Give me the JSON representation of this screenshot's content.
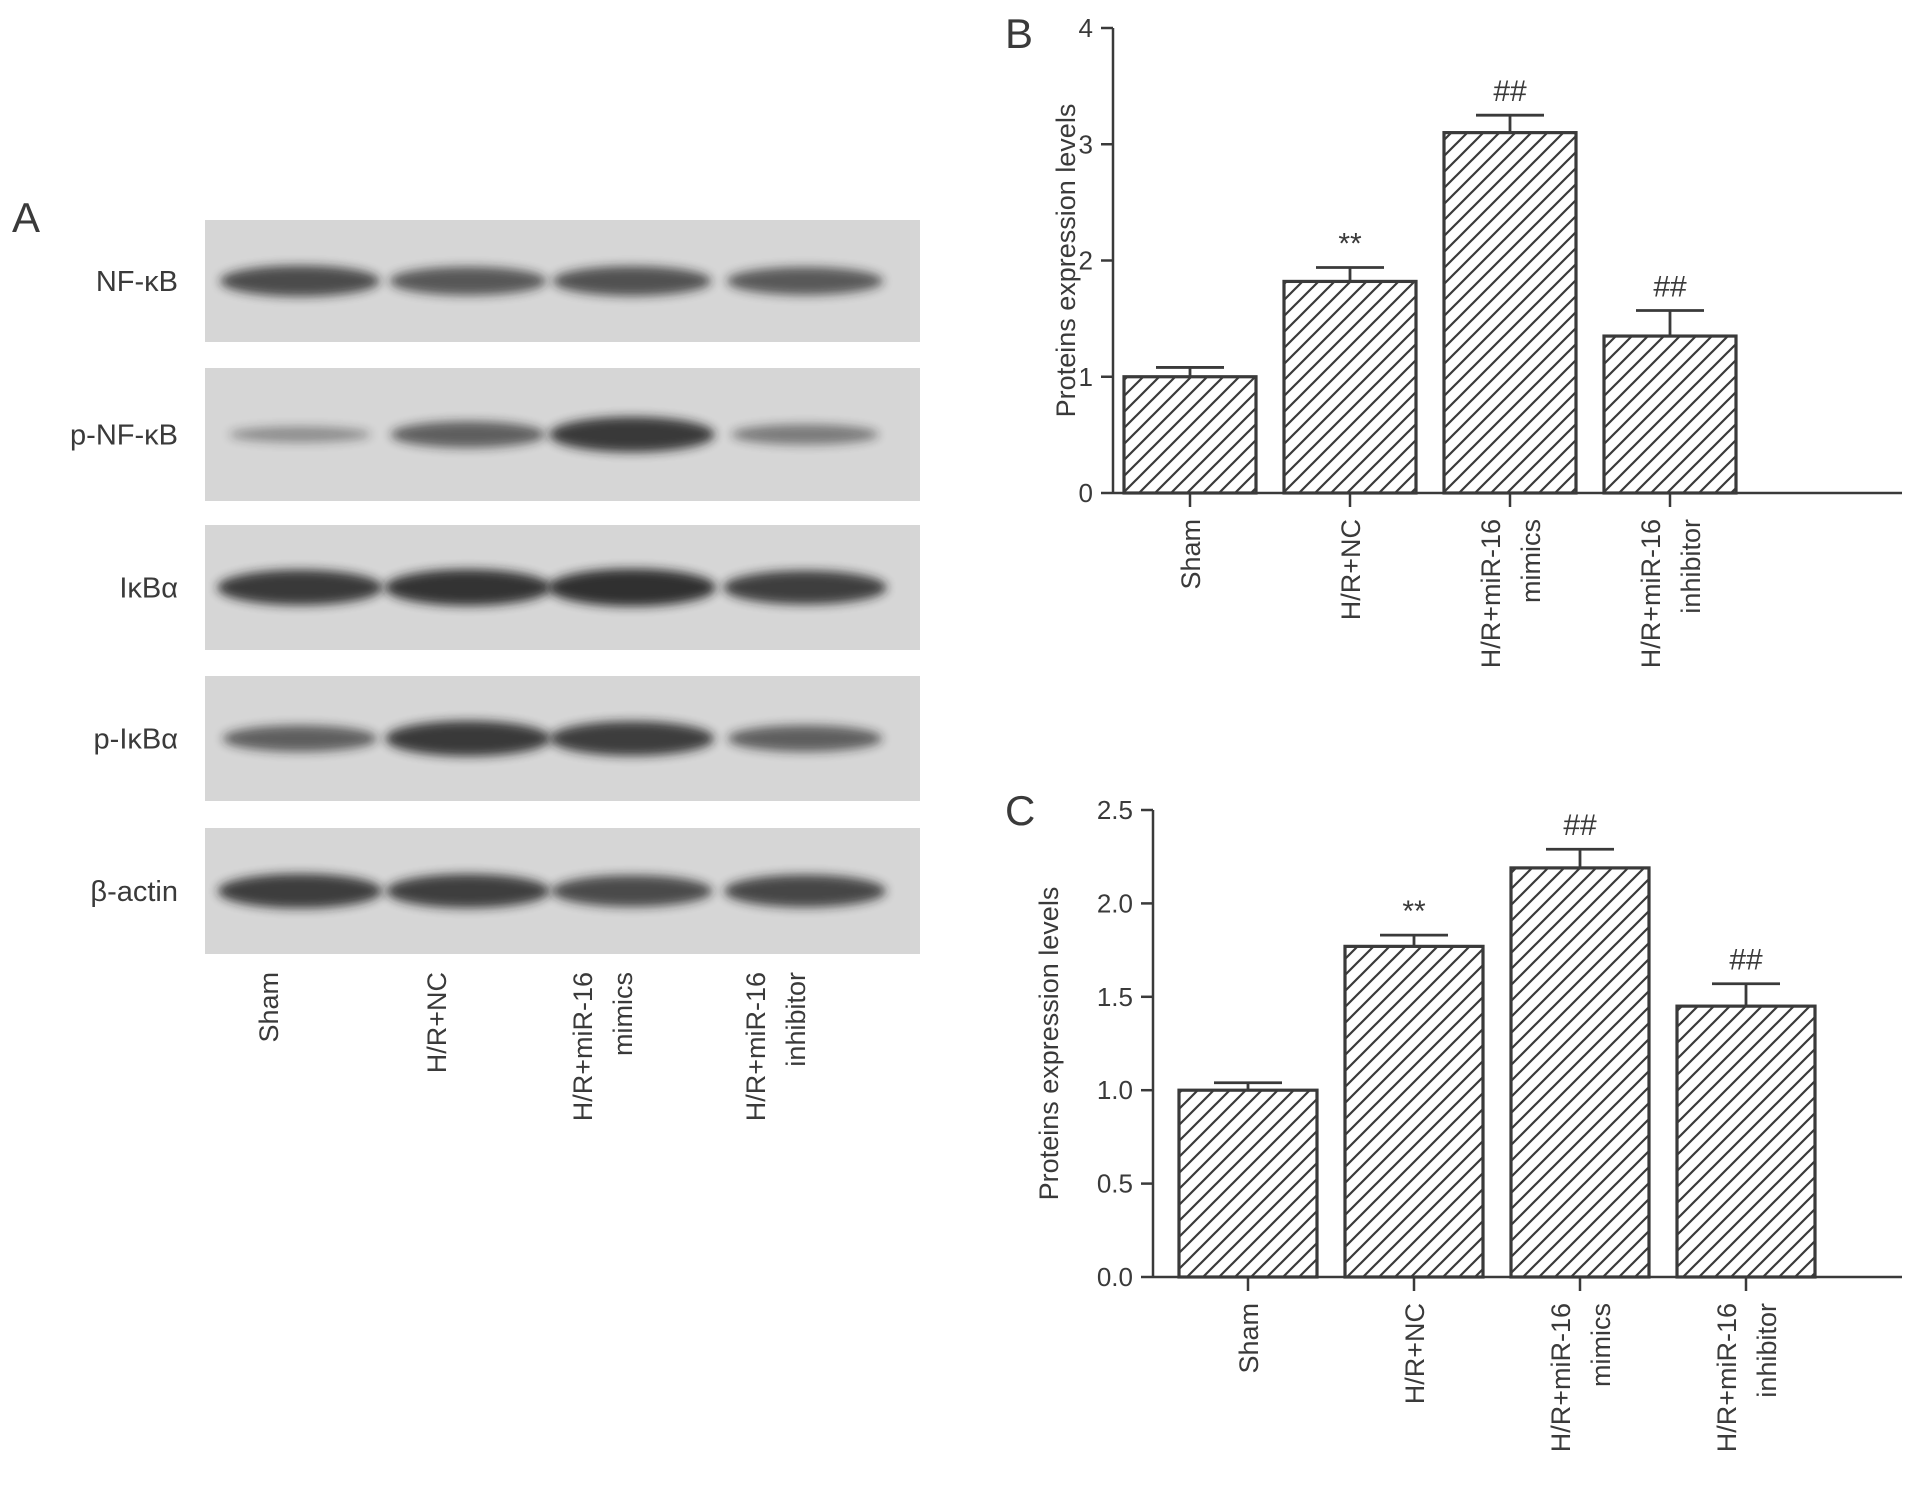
{
  "panel_a": {
    "letter": "A",
    "rows": [
      "NF-κB",
      "p-NF-κB",
      "IκBα",
      "p-IκBα",
      "β-actin"
    ],
    "lanes": [
      [
        "Sham"
      ],
      [
        "H/R+NC"
      ],
      [
        "H/R+miR-16",
        "mimics"
      ],
      [
        "H/R+miR-16",
        "inhibitor"
      ]
    ],
    "band_intensity": [
      [
        0.7,
        0.62,
        0.66,
        0.6
      ],
      [
        0.2,
        0.55,
        0.85,
        0.35
      ],
      [
        0.85,
        0.88,
        0.92,
        0.8
      ],
      [
        0.55,
        0.85,
        0.82,
        0.55
      ],
      [
        0.82,
        0.8,
        0.72,
        0.75
      ]
    ],
    "colors": {
      "membrane": "#d6d6d6",
      "band": "#1a1a1a"
    }
  },
  "chart_data": [
    {
      "type": "bar",
      "panel": "B",
      "categories": [
        [
          "Sham"
        ],
        [
          "H/R+NC"
        ],
        [
          "H/R+miR-16",
          "mimics"
        ],
        [
          "H/R+miR-16",
          "inhibitor"
        ]
      ],
      "values": [
        1.0,
        1.82,
        3.1,
        1.35
      ],
      "errors": [
        0.08,
        0.12,
        0.15,
        0.22
      ],
      "annotations": [
        "",
        "**",
        "##",
        "##"
      ],
      "ylabel": "Proteins expression levels",
      "xlabel": "",
      "ylim": [
        0,
        4
      ],
      "yticks": [
        0,
        1,
        2,
        3,
        4
      ],
      "ytick_labels": [
        "0",
        "1",
        "2",
        "3",
        "4"
      ],
      "grid": false,
      "bar_style": "diagonal hatch"
    },
    {
      "type": "bar",
      "panel": "C",
      "categories": [
        [
          "Sham"
        ],
        [
          "H/R+NC"
        ],
        [
          "H/R+miR-16",
          "mimics"
        ],
        [
          "H/R+miR-16",
          "inhibitor"
        ]
      ],
      "values": [
        1.0,
        1.77,
        2.19,
        1.45
      ],
      "errors": [
        0.04,
        0.06,
        0.1,
        0.12
      ],
      "annotations": [
        "",
        "**",
        "##",
        "##"
      ],
      "ylabel": "Proteins expression levels",
      "xlabel": "",
      "ylim": [
        0,
        2.5
      ],
      "yticks": [
        0,
        0.5,
        1,
        1.5,
        2,
        2.5
      ],
      "ytick_labels": [
        "0.0",
        "0.5",
        "1.0",
        "1.5",
        "2.0",
        "2.5"
      ],
      "grid": false,
      "bar_style": "diagonal hatch"
    }
  ]
}
